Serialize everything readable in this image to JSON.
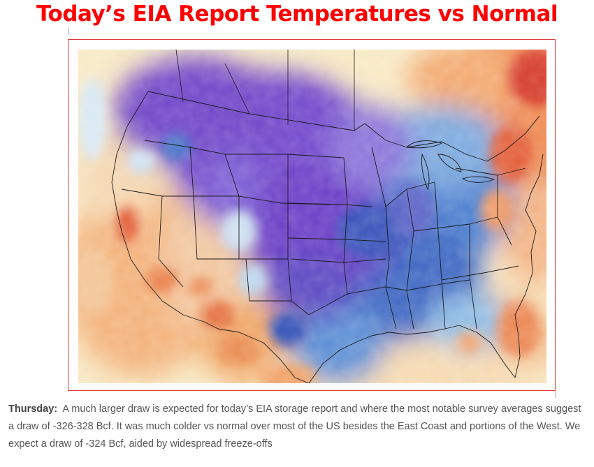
{
  "page": {
    "title": "Today’s EIA Report Temperatures vs Normal",
    "title_color": "#ff0000"
  },
  "map": {
    "subject": "temperature anomaly versus normal over the United States",
    "colors": {
      "very_cold": "#6a38c9",
      "cold": "#7d63d6",
      "cool": "#3d6fc8",
      "slightly_cool": "#8ec0e8",
      "near_normal": "#fbf3d6",
      "warm": "#f5a866",
      "hot": "#e86436",
      "very_hot": "#d7362a"
    }
  },
  "caption": {
    "lead": "Thursday:",
    "text": "A much larger draw is expected for today’s EIA storage report and where the most notable survey averages suggest a draw of -326-328 Bcf. It was much colder vs normal over most of the US besides the East Coast and portions of the West. We expect a draw of -324 Bcf, aided by widespread freeze-offs"
  }
}
